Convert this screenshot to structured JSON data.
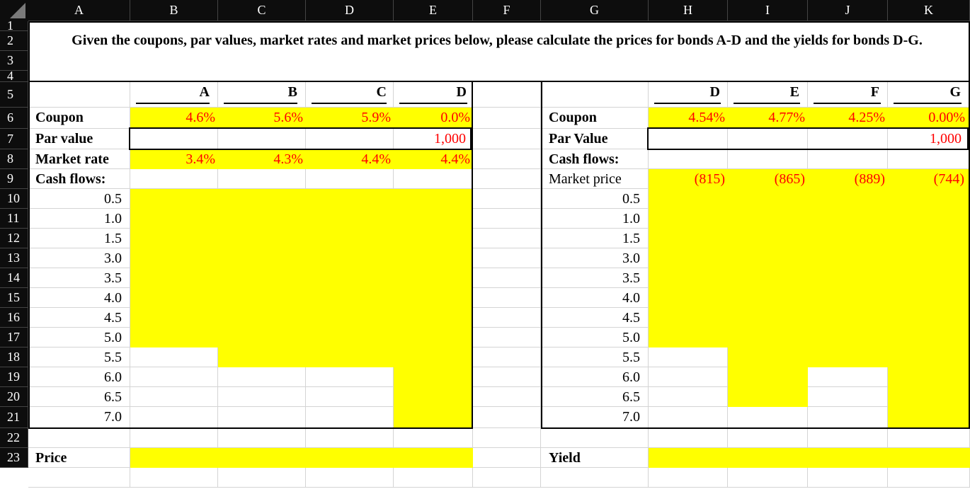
{
  "columns": [
    "A",
    "B",
    "C",
    "D",
    "E",
    "F",
    "G",
    "H",
    "I",
    "J",
    "K"
  ],
  "rows": [
    "1",
    "2",
    "3",
    "4",
    "5",
    "6",
    "7",
    "8",
    "9",
    "10",
    "11",
    "12",
    "13",
    "14",
    "15",
    "16",
    "17",
    "18",
    "19",
    "20",
    "21",
    "22",
    "23"
  ],
  "title": "Given the coupons, par values, market rates and market prices below, please calculate the prices for bonds A-D and the yields for bonds D-G.",
  "left": {
    "bond_headers": [
      "A",
      "B",
      "C",
      "D"
    ],
    "labels": {
      "coupon": "Coupon",
      "par": "Par value",
      "rate": "Market rate",
      "cash": "Cash flows:",
      "price": "Price"
    },
    "coupons": [
      "4.6%",
      "5.6%",
      "5.9%",
      "0.0%"
    ],
    "par_value": "1,000",
    "market_rates": [
      "3.4%",
      "4.3%",
      "4.4%",
      "4.4%"
    ],
    "periods": [
      "0.5",
      "1.0",
      "1.5",
      "3.0",
      "3.5",
      "4.0",
      "4.5",
      "5.0",
      "5.5",
      "6.0",
      "6.5",
      "7.0"
    ]
  },
  "right": {
    "bond_headers": [
      "D",
      "E",
      "F",
      "G"
    ],
    "labels": {
      "coupon": "Coupon",
      "par": "Par Value",
      "cash": "Cash flows:",
      "market_price": "Market price",
      "yield": "Yield"
    },
    "coupons": [
      "4.54%",
      "4.77%",
      "4.25%",
      "0.00%"
    ],
    "par_value": "1,000",
    "market_prices": [
      "(815)",
      "(865)",
      "(889)",
      "(744)"
    ],
    "periods": [
      "0.5",
      "1.0",
      "1.5",
      "3.0",
      "3.5",
      "4.0",
      "4.5",
      "5.0",
      "5.5",
      "6.0",
      "6.5",
      "7.0"
    ]
  },
  "colors": {
    "highlight": "#ffff00",
    "input_text": "#ff0000",
    "header_bg": "#0d0d0d"
  }
}
